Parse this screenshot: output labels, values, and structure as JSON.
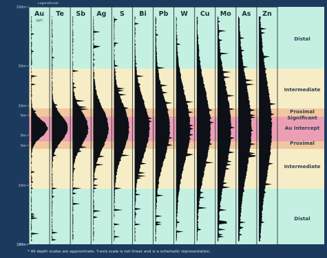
{
  "top_note": "Legend/scale",
  "elements": [
    {
      "symbol": "Au",
      "unit": "(g/t)"
    },
    {
      "symbol": "Te",
      "unit": ""
    },
    {
      "symbol": "Sb",
      "unit": ""
    },
    {
      "symbol": "Ag",
      "unit": ""
    },
    {
      "symbol": "S",
      "unit": ""
    },
    {
      "symbol": "Bi",
      "unit": ""
    },
    {
      "symbol": "Pb",
      "unit": ""
    },
    {
      "symbol": "W",
      "unit": ""
    },
    {
      "symbol": "Cu",
      "unit": ""
    },
    {
      "symbol": "Mo",
      "unit": ""
    },
    {
      "symbol": "As",
      "unit": ""
    },
    {
      "symbol": "Zn",
      "unit": ""
    }
  ],
  "depth_labels": [
    "100m",
    "20m",
    "10m",
    "5m",
    "0m",
    "5m",
    "10m",
    "20m",
    "100m"
  ],
  "zones": [
    {
      "label": "Distal",
      "color": "#c4f0e2"
    },
    {
      "label": "Intermediate",
      "color": "#f6edc6"
    },
    {
      "label": "Proximal",
      "color": "#f0c79e"
    },
    {
      "label": "Significant Au Intercept",
      "color": "#ec9fb4"
    },
    {
      "label": "Proximal",
      "color": "#f0c79e"
    },
    {
      "label": "Intermediate",
      "color": "#f6edc6"
    },
    {
      "label": "Distal",
      "color": "#c4f0e2"
    }
  ],
  "footnote": "* All depth scales are approximate. Y-axis scale is not linear and is a schematic representation."
}
